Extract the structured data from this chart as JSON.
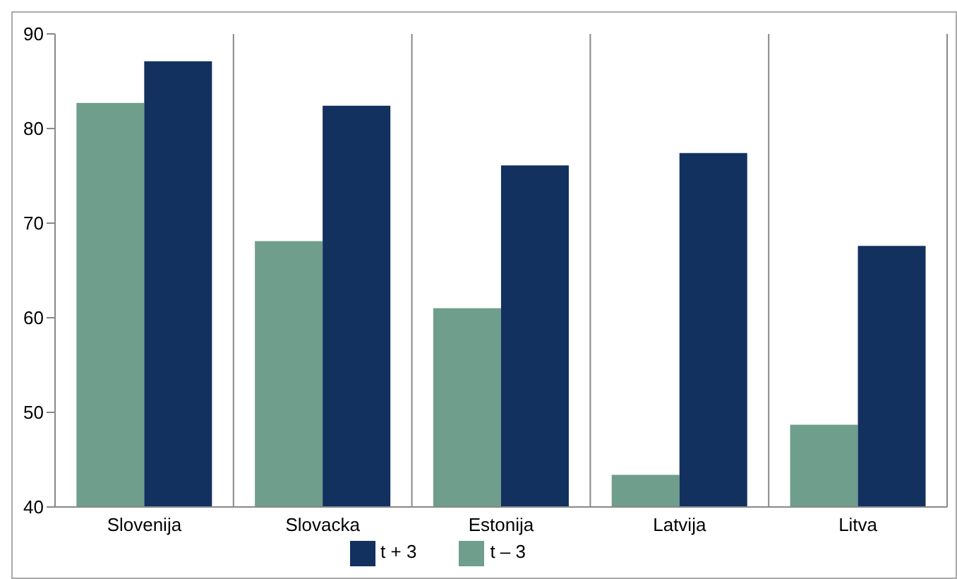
{
  "chart_data": {
    "type": "bar",
    "categories": [
      "Slovenija",
      "Slovacka",
      "Estonija",
      "Latvija",
      "Litva"
    ],
    "series": [
      {
        "name": "t – 3",
        "color": "#6f9e8c",
        "values": [
          82.7,
          68.1,
          61,
          43.4,
          48.7
        ]
      },
      {
        "name": "t + 3",
        "color": "#13315f",
        "values": [
          87.1,
          82.4,
          76.1,
          77.4,
          67.6
        ]
      }
    ],
    "ylim": [
      40,
      90
    ],
    "yticks": [
      40,
      50,
      60,
      70,
      80,
      90
    ],
    "grid": "x",
    "legend": "bottom"
  }
}
